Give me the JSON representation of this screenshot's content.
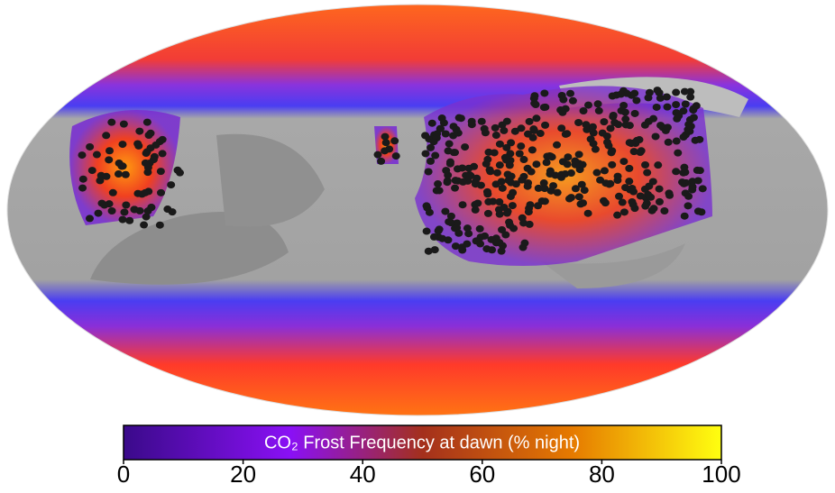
{
  "colorbar": {
    "label": "CO₂ Frost Frequency at dawn (% night)",
    "range": [
      0,
      100
    ],
    "ticks": [
      0,
      20,
      40,
      60,
      80,
      100
    ]
  }
}
